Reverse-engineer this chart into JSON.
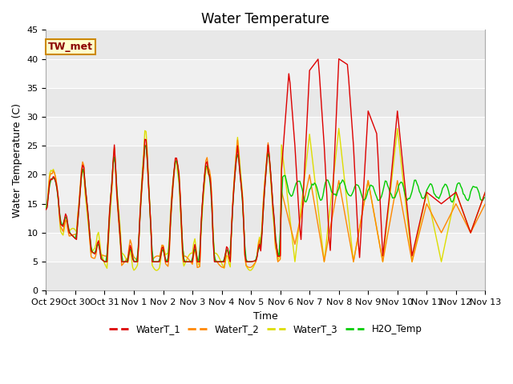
{
  "title": "Water Temperature",
  "ylabel": "Water Temperature (C)",
  "xlabel": "Time",
  "ylim": [
    0,
    45
  ],
  "annotation_text": "TW_met",
  "annotation_color": "#8B0000",
  "annotation_bg": "#ffffcc",
  "annotation_border": "#cc8800",
  "line_colors": {
    "WaterT_1": "#dd0000",
    "WaterT_2": "#ff8800",
    "WaterT_3": "#dddd00",
    "H2O_Temp": "#00cc00"
  },
  "bg_colors": [
    "#e8e8e8",
    "#f0f0f0"
  ],
  "x_tick_labels": [
    "Oct 29",
    "Oct 30",
    "Oct 31",
    "Nov 1",
    "Nov 2",
    "Nov 3",
    "Nov 4",
    "Nov 5",
    "Nov 6",
    "Nov 7",
    "Nov 8",
    "Nov 9",
    "Nov 10",
    "Nov 11",
    "Nov 12",
    "Nov 13"
  ],
  "title_fontsize": 12,
  "axis_fontsize": 9,
  "tick_fontsize": 8
}
